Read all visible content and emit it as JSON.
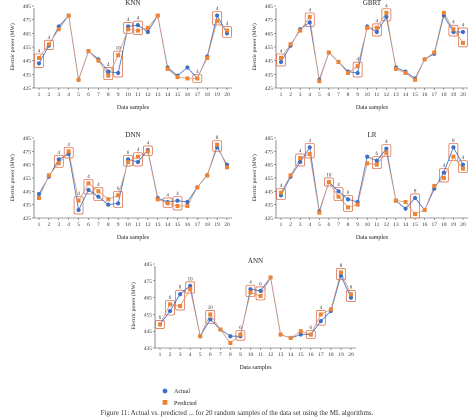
{
  "legend": {
    "actual": "Actual",
    "predicted": "Predicted"
  },
  "colors": {
    "actual": "#3f6fc4",
    "predicted": "#ee8433",
    "box": "#d9603a",
    "line": "#d99a7a"
  },
  "caption": "Figure 11: Actual vs. predicted ... for 20 random samples of the data set using the ML algorithms.",
  "chart_data": [
    {
      "type": "line",
      "title": "KNN",
      "xlabel": "Data samples",
      "ylabel": "Electric power (MW)",
      "ylim": [
        425,
        485
      ],
      "yticks": [
        425,
        435,
        445,
        455,
        465,
        475,
        485
      ],
      "categories": [
        "1",
        "2",
        "3",
        "4",
        "5",
        "6",
        "7",
        "8",
        "9",
        "10",
        "11",
        "12",
        "13",
        "14",
        "15",
        "16",
        "17",
        "18",
        "19",
        "20"
      ],
      "series": [
        {
          "name": "Actual",
          "values": [
            443,
            456,
            470,
            478,
            431,
            452,
            446,
            437,
            436,
            470,
            471,
            466,
            478,
            440,
            434,
            440,
            432,
            448,
            478,
            465
          ]
        },
        {
          "name": "Predicted",
          "values": [
            447,
            457,
            468,
            478,
            431,
            452,
            445,
            434,
            449,
            468,
            467,
            469,
            478,
            439,
            433,
            432,
            432,
            447,
            474,
            467
          ]
        }
      ],
      "annotations": [
        {
          "label": "4",
          "x": 1
        },
        {
          "label": "4",
          "x": 2
        },
        {
          "label": "4",
          "x": 8
        },
        {
          "label": "10",
          "x": 9
        },
        {
          "label": "4",
          "x": 10
        },
        {
          "label": "4",
          "x": 11
        },
        {
          "label": "4",
          "x": 17
        },
        {
          "label": "4",
          "x": 19
        },
        {
          "label": "4",
          "x": 20
        }
      ]
    },
    {
      "type": "line",
      "title": "GBRT",
      "xlabel": "Data samples",
      "ylabel": "Electric power (MW)",
      "ylim": [
        425,
        485
      ],
      "yticks": [
        425,
        435,
        445,
        455,
        465,
        475,
        485
      ],
      "categories": [
        "1",
        "2",
        "3",
        "4",
        "5",
        "6",
        "7",
        "8",
        "9",
        "10",
        "11",
        "12",
        "13",
        "14",
        "15",
        "16",
        "17",
        "18",
        "19",
        "20"
      ],
      "series": [
        {
          "name": "Actual",
          "values": [
            444,
            456,
            468,
            473,
            431,
            451,
            444,
            437,
            436,
            470,
            466,
            477,
            440,
            437,
            432,
            446,
            450,
            478,
            466,
            466
          ]
        },
        {
          "name": "Predicted",
          "values": [
            447,
            457,
            467,
            477,
            430,
            451,
            444,
            436,
            441,
            469,
            469,
            480,
            439,
            436,
            431,
            446,
            451,
            480,
            468,
            458
          ]
        }
      ],
      "annotations": [
        {
          "label": "4",
          "x": 1
        },
        {
          "label": "4",
          "x": 4
        },
        {
          "label": "4",
          "x": 9
        },
        {
          "label": "4",
          "x": 11
        },
        {
          "label": "4",
          "x": 12
        },
        {
          "label": "4",
          "x": 19
        },
        {
          "label": "4",
          "x": 20
        }
      ]
    },
    {
      "type": "line",
      "title": "DNN",
      "xlabel": "Data samples",
      "ylabel": "Electric power (MW)",
      "ylim": [
        425,
        485
      ],
      "yticks": [
        425,
        435,
        445,
        455,
        465,
        475,
        485
      ],
      "categories": [
        "1",
        "2",
        "3",
        "4",
        "5",
        "6",
        "7",
        "8",
        "9",
        "10",
        "11",
        "12",
        "13",
        "14",
        "15",
        "16",
        "17",
        "18",
        "19",
        "20"
      ],
      "series": [
        {
          "name": "Actual",
          "values": [
            443,
            456,
            469,
            473,
            431,
            446,
            441,
            435,
            436,
            469,
            467,
            476,
            440,
            437,
            438,
            437,
            448,
            457,
            478,
            465
          ]
        },
        {
          "name": "Predicted",
          "values": [
            440,
            457,
            466,
            475,
            438,
            451,
            445,
            439,
            442,
            467,
            471,
            475,
            439,
            436,
            434,
            434,
            448,
            457,
            480,
            463
          ]
        }
      ],
      "annotations": [
        {
          "label": "4",
          "x": 3
        },
        {
          "label": "4",
          "x": 4
        },
        {
          "label": "4",
          "x": 5
        },
        {
          "label": "4",
          "x": 6
        },
        {
          "label": "4",
          "x": 7
        },
        {
          "label": "6",
          "x": 9
        },
        {
          "label": "6",
          "x": 10
        },
        {
          "label": "4",
          "x": 11
        },
        {
          "label": "4",
          "x": 12
        },
        {
          "label": "4",
          "x": 14
        },
        {
          "label": "4",
          "x": 15
        },
        {
          "label": "8",
          "x": 19
        }
      ]
    },
    {
      "type": "line",
      "title": "LR",
      "xlabel": "Data samples",
      "ylabel": "Electric power (MW)",
      "ylim": [
        425,
        485
      ],
      "yticks": [
        425,
        435,
        445,
        455,
        465,
        475,
        485
      ],
      "categories": [
        "1",
        "2",
        "3",
        "4",
        "5",
        "6",
        "7",
        "8",
        "9",
        "10",
        "11",
        "12",
        "13",
        "14",
        "15",
        "16",
        "17",
        "18",
        "19",
        "20"
      ],
      "series": [
        {
          "name": "Actual",
          "values": [
            442,
            456,
            467,
            478,
            430,
            452,
            445,
            439,
            437,
            471,
            468,
            477,
            438,
            432,
            440,
            431,
            447,
            459,
            478,
            465
          ]
        },
        {
          "name": "Predicted",
          "values": [
            444,
            457,
            470,
            473,
            429,
            452,
            441,
            433,
            435,
            466,
            465,
            474,
            438,
            437,
            428,
            431,
            449,
            455,
            471,
            462
          ]
        }
      ],
      "annotations": [
        {
          "label": "4",
          "x": 1
        },
        {
          "label": "4",
          "x": 3
        },
        {
          "label": "4",
          "x": 4
        },
        {
          "label": "10",
          "x": 6
        },
        {
          "label": "4",
          "x": 7
        },
        {
          "label": "6",
          "x": 8
        },
        {
          "label": "6",
          "x": 11
        },
        {
          "label": "4",
          "x": 12
        },
        {
          "label": "8",
          "x": 15
        },
        {
          "label": "4",
          "x": 18
        },
        {
          "label": "8",
          "x": 19
        },
        {
          "label": "4",
          "x": 20
        }
      ]
    },
    {
      "type": "line",
      "title": "ANN",
      "xlabel": "Data samples",
      "ylabel": "Electric power (MW)",
      "ylim": [
        435,
        485
      ],
      "yticks": [
        435,
        445,
        455,
        465,
        475,
        485
      ],
      "categories": [
        "1",
        "2",
        "3",
        "4",
        "5",
        "6",
        "7",
        "8",
        "9",
        "10",
        "11",
        "12",
        "13",
        "14",
        "15",
        "16",
        "17",
        "18",
        "19",
        "20"
      ],
      "series": [
        {
          "name": "Actual",
          "values": [
            449,
            457,
            467,
            472,
            442,
            452,
            446,
            442,
            442,
            470,
            469,
            477,
            443,
            441,
            443,
            443,
            451,
            457,
            478,
            465
          ]
        },
        {
          "name": "Predicted",
          "values": [
            449,
            461,
            460,
            470,
            442,
            455,
            446,
            438,
            443,
            468,
            466,
            477,
            443,
            441,
            445,
            443,
            455,
            458,
            480,
            467
          ]
        }
      ],
      "annotations": [
        {
          "label": "6",
          "x": 1
        },
        {
          "label": "6",
          "x": 2
        },
        {
          "label": "8",
          "x": 3
        },
        {
          "label": "10",
          "x": 4
        },
        {
          "label": "10",
          "x": 6
        },
        {
          "label": "6",
          "x": 9
        },
        {
          "label": "4",
          "x": 10
        },
        {
          "label": "6",
          "x": 11
        },
        {
          "label": "6",
          "x": 16
        },
        {
          "label": "4",
          "x": 17
        },
        {
          "label": "8",
          "x": 19
        },
        {
          "label": "6",
          "x": 20
        }
      ]
    }
  ]
}
